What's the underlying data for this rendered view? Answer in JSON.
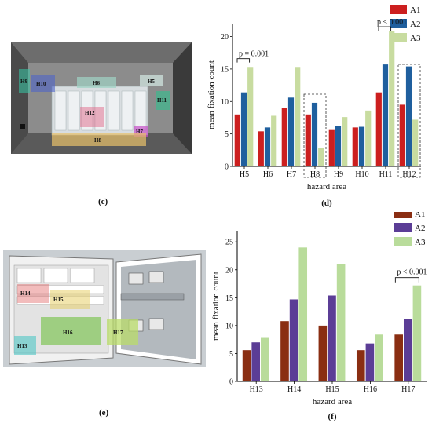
{
  "panels": {
    "c": {
      "caption": "(c)",
      "hazard_labels": [
        "H9",
        "H10",
        "H6",
        "H5",
        "H11",
        "H12",
        "H7",
        "H8"
      ]
    },
    "e": {
      "caption": "(e)",
      "hazard_labels": [
        "H14",
        "H15",
        "H16",
        "H17",
        "H13"
      ]
    }
  },
  "colors": {
    "A1": "#cc1f1f",
    "A2": "#1f5f9e",
    "A3": "#c8dca0"
  },
  "colors_f": {
    "A1": "#8a2e12",
    "A2": "#5b3d96",
    "A3": "#b9dc9b"
  },
  "chart_data": [
    {
      "type": "bar",
      "caption": "(d)",
      "xlabel": "hazard area",
      "ylabel": "mean fixation count",
      "ylim": [
        0,
        22
      ],
      "yticks": [
        0,
        5,
        10,
        15,
        20
      ],
      "categories": [
        "H5",
        "H6",
        "H7",
        "H8",
        "H9",
        "H10",
        "H11",
        "H12"
      ],
      "series": [
        {
          "name": "A1",
          "values": [
            8.0,
            5.4,
            9.0,
            8.0,
            5.6,
            6.0,
            11.4,
            9.5
          ]
        },
        {
          "name": "A2",
          "values": [
            11.4,
            6.0,
            10.6,
            9.8,
            6.2,
            6.1,
            15.7,
            15.4
          ]
        },
        {
          "name": "A3",
          "values": [
            15.2,
            7.8,
            15.2,
            2.8,
            7.6,
            8.6,
            20.8,
            7.2
          ]
        }
      ],
      "legend": [
        "A1",
        "A2",
        "A3"
      ],
      "legend_position": "top-right",
      "annotations": [
        "p = 0.001",
        "p < 0.001"
      ]
    },
    {
      "type": "bar",
      "caption": "(f)",
      "xlabel": "hazard area",
      "ylabel": "mean fixation count",
      "ylim": [
        0,
        27
      ],
      "yticks": [
        0,
        5,
        10,
        15,
        20,
        25
      ],
      "categories": [
        "H13",
        "H14",
        "H15",
        "H16",
        "H17"
      ],
      "series": [
        {
          "name": "A1",
          "values": [
            5.6,
            10.8,
            10.0,
            5.6,
            8.4
          ]
        },
        {
          "name": "A2",
          "values": [
            7.0,
            14.7,
            15.4,
            6.8,
            11.2
          ]
        },
        {
          "name": "A3",
          "values": [
            7.8,
            24.0,
            21.0,
            8.4,
            17.2
          ]
        }
      ],
      "legend": [
        "A1",
        "A2",
        "A3"
      ],
      "legend_position": "top-right",
      "annotations": [
        "p < 0.001"
      ]
    }
  ]
}
